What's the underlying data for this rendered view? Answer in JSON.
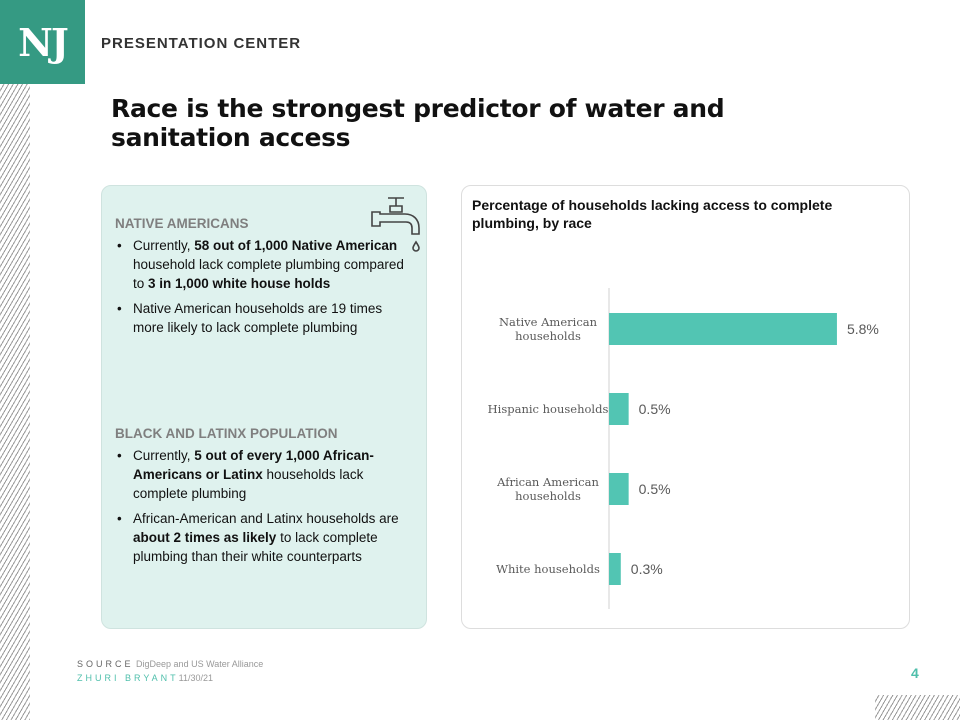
{
  "header": {
    "logo": "NJ",
    "center": "PRESENTATION CENTER"
  },
  "title": "Race is the strongest predictor of water and sanitation access",
  "card": {
    "icon": "faucet-icon",
    "sections": [
      {
        "heading": "NATIVE AMERICANS",
        "bullets": [
          [
            {
              "t": "Currently, ",
              "b": false
            },
            {
              "t": "58 out of 1,000 Native American",
              "b": true
            },
            {
              "t": " household lack complete plumbing compared to ",
              "b": false
            },
            {
              "t": "3 in 1,000 white house holds",
              "b": true
            }
          ],
          [
            {
              "t": "Native American households are 19 times more likely to lack complete plumbing",
              "b": false
            }
          ]
        ]
      },
      {
        "heading": "BLACK AND LATINX POPULATION",
        "bullets": [
          [
            {
              "t": "Currently, ",
              "b": false
            },
            {
              "t": "5 out of every 1,000 African-Americans  or Latinx",
              "b": true
            },
            {
              "t": " households lack complete plumbing",
              "b": false
            }
          ],
          [
            {
              "t": "African-American  and Latinx households are ",
              "b": false
            },
            {
              "t": "about 2 times as likely",
              "b": true
            },
            {
              "t": " to lack complete plumbing than their white counterparts",
              "b": false
            }
          ]
        ]
      }
    ]
  },
  "chart_data": {
    "type": "bar",
    "orientation": "horizontal",
    "title": "Percentage of households lacking access to complete plumbing, by race",
    "categories": [
      "Native American households",
      "Hispanic households",
      "African American households",
      "White households"
    ],
    "values": [
      5.8,
      0.5,
      0.5,
      0.3
    ],
    "labels": [
      "5.8%",
      "0.5%",
      "0.5%",
      "0.3%"
    ],
    "color": "#52c5b3",
    "grid": false
  },
  "footer": {
    "source_label": "SOURCE",
    "source": "DigDeep and US Water Alliance",
    "author": "ZHURI BRYANT",
    "date": "11/30/21",
    "page": "4"
  }
}
